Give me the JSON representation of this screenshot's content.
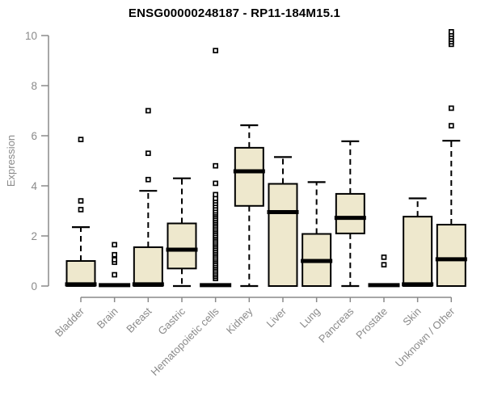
{
  "chart_data": {
    "type": "boxplot",
    "title": "ENSG00000248187 - RP11-184M15.1",
    "ylabel": "Expression",
    "xlabel": "",
    "ylim": [
      0,
      10
    ],
    "yticks": [
      0,
      2,
      4,
      6,
      8,
      10
    ],
    "grid": false,
    "legend": false,
    "categories": [
      "Bladder",
      "Brain",
      "Breast",
      "Gastric",
      "Hematopoietic cells",
      "Kidney",
      "Liver",
      "Lung",
      "Pancreas",
      "Prostate",
      "Skin",
      "Unknown / Other"
    ],
    "series": [
      {
        "name": "Bladder",
        "whislo": 0,
        "q1": 0,
        "med": 0.07,
        "q3": 1.0,
        "whishi": 2.35,
        "outliers": [
          3.05,
          3.4,
          5.85
        ]
      },
      {
        "name": "Brain",
        "whislo": 0,
        "q1": 0,
        "med": 0.035,
        "q3": 0.07,
        "whishi": 0.07,
        "outliers": [
          0.45,
          0.95,
          1.05,
          1.25,
          1.65
        ]
      },
      {
        "name": "Breast",
        "whislo": 0,
        "q1": 0,
        "med": 0.07,
        "q3": 1.55,
        "whishi": 3.8,
        "outliers": [
          4.25,
          5.3,
          7.0
        ]
      },
      {
        "name": "Gastric",
        "whislo": 0,
        "q1": 0.7,
        "med": 1.45,
        "q3": 2.5,
        "whishi": 4.3,
        "outliers": []
      },
      {
        "name": "Hematopoietic cells",
        "whislo": 0,
        "q1": 0,
        "med": 0.035,
        "q3": 0.07,
        "whishi": 0.07,
        "outliers": [
          0.3,
          0.38,
          0.45,
          0.52,
          0.6,
          0.68,
          0.75,
          0.82,
          0.9,
          0.98,
          1.05,
          1.12,
          1.2,
          1.28,
          1.35,
          1.42,
          1.5,
          1.58,
          1.65,
          1.72,
          1.8,
          1.88,
          1.95,
          2.02,
          2.1,
          2.18,
          2.25,
          2.32,
          2.4,
          2.48,
          2.55,
          2.62,
          2.7,
          2.78,
          2.85,
          2.92,
          3.0,
          3.1,
          3.2,
          3.3,
          3.4,
          3.5,
          3.65,
          4.1,
          4.8,
          9.4
        ]
      },
      {
        "name": "Kidney",
        "whislo": 0,
        "q1": 3.2,
        "med": 4.58,
        "q3": 5.52,
        "whishi": 6.42,
        "outliers": []
      },
      {
        "name": "Liver",
        "whislo": 0,
        "q1": 0,
        "med": 2.95,
        "q3": 4.08,
        "whishi": 5.15,
        "outliers": []
      },
      {
        "name": "Lung",
        "whislo": 0,
        "q1": 0,
        "med": 1.0,
        "q3": 2.08,
        "whishi": 4.15,
        "outliers": []
      },
      {
        "name": "Pancreas",
        "whislo": 0,
        "q1": 2.1,
        "med": 2.72,
        "q3": 3.68,
        "whishi": 5.78,
        "outliers": []
      },
      {
        "name": "Prostate",
        "whislo": 0,
        "q1": 0,
        "med": 0.035,
        "q3": 0.07,
        "whishi": 0.07,
        "outliers": [
          0.85,
          1.15
        ]
      },
      {
        "name": "Skin",
        "whislo": 0,
        "q1": 0,
        "med": 0.07,
        "q3": 2.77,
        "whishi": 3.5,
        "outliers": []
      },
      {
        "name": "Unknown / Other",
        "whislo": 0,
        "q1": 0,
        "med": 1.07,
        "q3": 2.45,
        "whishi": 5.8,
        "outliers": [
          6.4,
          7.1,
          9.65,
          9.75,
          9.85,
          9.95,
          10.05,
          10.15
        ]
      }
    ],
    "colors": {
      "box_fill": "#EEE8CD",
      "box_stroke": "#000000",
      "median": "#000000",
      "whisker": "#000000",
      "outlier_stroke": "#000000",
      "axis_line": "#8a8a8a",
      "axis_text": "#8a8a8a",
      "title_text": "#000000",
      "background": "#ffffff"
    }
  }
}
